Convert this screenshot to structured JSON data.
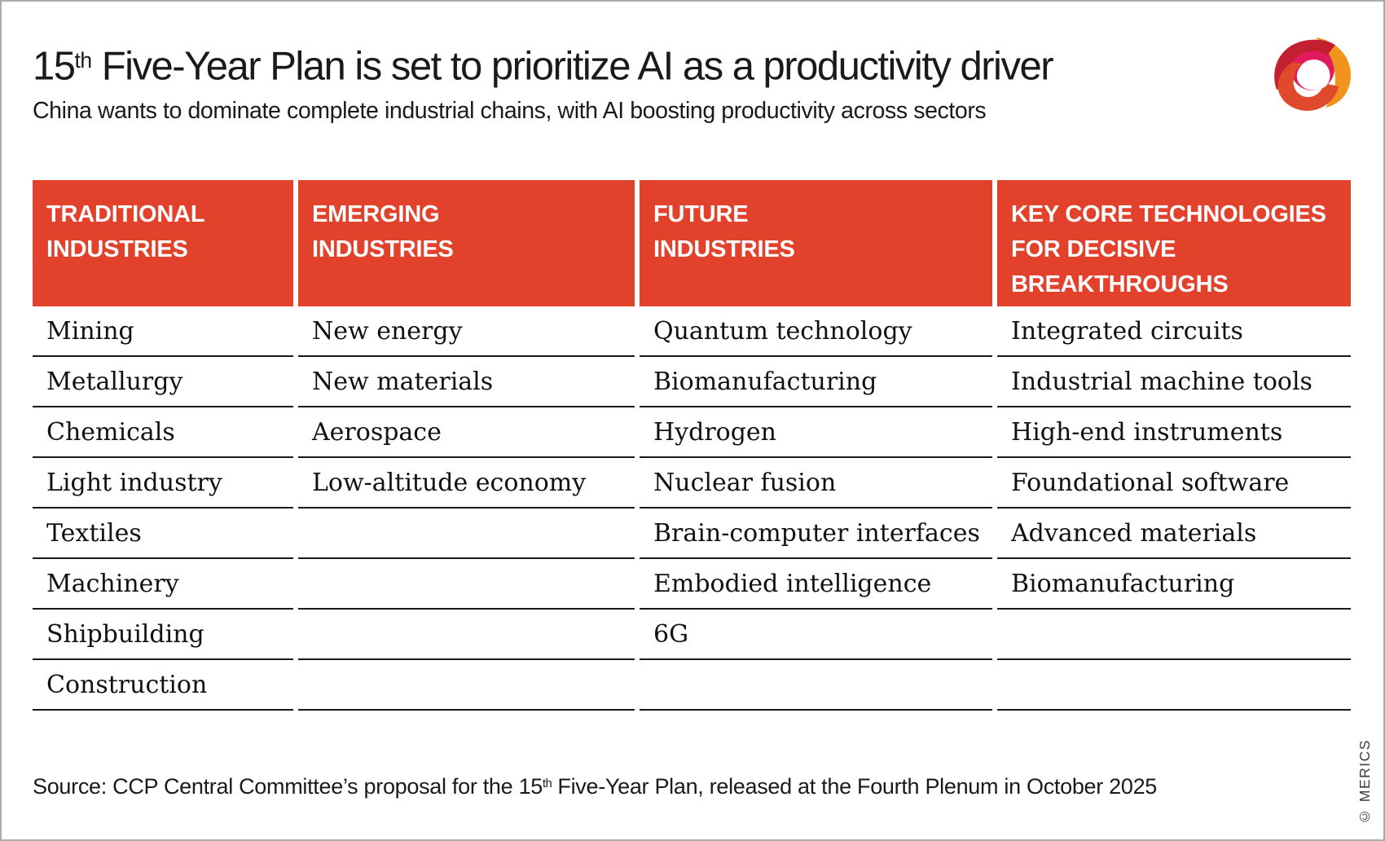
{
  "page": {
    "title": {
      "prefix": "15",
      "sup": "th",
      "rest": " Five-Year Plan is set to prioritize AI as a productivity driver"
    },
    "subtitle": "China wants to dominate complete industrial chains, with AI boosting productivity across sectors",
    "logo": "merics-logo",
    "source": {
      "prefix": "Source: CCP Central Committee’s proposal for the 15",
      "sup": "th",
      "rest": " Five-Year Plan, released at the Fourth Plenum in October 2025"
    },
    "copyright": "© MERICS"
  },
  "colors": {
    "accent_red": "#E2412C",
    "rule_line": "#191919",
    "page_border": "#ABABAB",
    "logo_crimson": "#C22031",
    "logo_orange": "#F0941D",
    "logo_pink": "#E01A5C",
    "logo_red_orange": "#DF4A2C"
  },
  "table": {
    "columns": [
      {
        "label": "TRADITIONAL\nINDUSTRIES",
        "items": [
          "Mining",
          "Metallurgy",
          "Chemicals",
          "Light industry",
          "Textiles",
          "Machinery",
          "Shipbuilding",
          "Construction"
        ]
      },
      {
        "label": "EMERGING\nINDUSTRIES",
        "items": [
          "New energy",
          "New materials",
          "Aerospace",
          "Low-altitude economy",
          "",
          "",
          "",
          ""
        ]
      },
      {
        "label": "FUTURE\nINDUSTRIES",
        "items": [
          "Quantum technology",
          "Biomanufacturing",
          "Hydrogen",
          "Nuclear fusion",
          "Brain-computer interfaces",
          "Embodied intelligence",
          "6G",
          ""
        ]
      },
      {
        "label": "KEY CORE TECHNOLOGIES\nFOR DECISIVE\nBREAKTHROUGHS",
        "items": [
          "Integrated circuits",
          "Industrial machine tools",
          "High-end instruments",
          "Foundational software",
          "Advanced materials",
          "Biomanufacturing",
          "",
          ""
        ]
      }
    ]
  },
  "chart_data": {
    "type": "table",
    "title": "15th Five-Year Plan is set to prioritize AI as a productivity driver",
    "subtitle": "China wants to dominate complete industrial chains, with AI boosting productivity across sectors",
    "columns": [
      "TRADITIONAL INDUSTRIES",
      "EMERGING INDUSTRIES",
      "FUTURE INDUSTRIES",
      "KEY CORE TECHNOLOGIES FOR DECISIVE BREAKTHROUGHS"
    ],
    "rows": [
      [
        "Mining",
        "New energy",
        "Quantum technology",
        "Integrated circuits"
      ],
      [
        "Metallurgy",
        "New materials",
        "Biomanufacturing",
        "Industrial machine tools"
      ],
      [
        "Chemicals",
        "Aerospace",
        "Hydrogen",
        "High-end instruments"
      ],
      [
        "Light industry",
        "Low-altitude economy",
        "Nuclear fusion",
        "Foundational software"
      ],
      [
        "Textiles",
        "",
        "Brain-computer interfaces",
        "Advanced materials"
      ],
      [
        "Machinery",
        "",
        "Embodied intelligence",
        "Biomanufacturing"
      ],
      [
        "Shipbuilding",
        "",
        "6G",
        ""
      ],
      [
        "Construction",
        "",
        "",
        ""
      ]
    ],
    "source": "Source: CCP Central Committee’s proposal for the 15th Five-Year Plan, released at the Fourth Plenum in October 2025",
    "layout": "header row red (#E2412C), thin black rule under every body cell, grid off elsewhere"
  }
}
